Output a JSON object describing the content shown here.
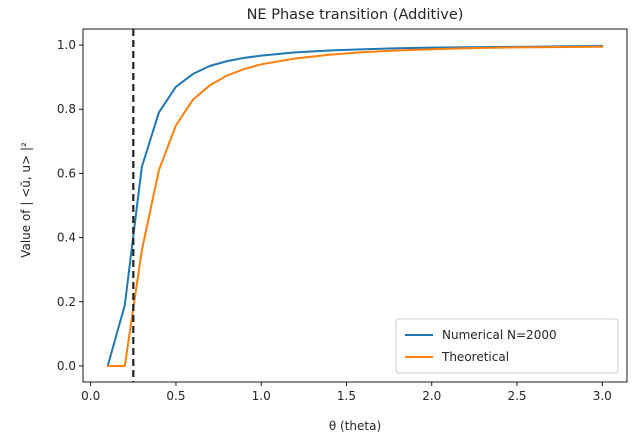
{
  "chart_data": {
    "type": "line",
    "title": "NE Phase transition (Additive)",
    "xlabel": "θ (theta)",
    "ylabel": "Value of | <ũ, u> |²",
    "xlim": [
      -0.045,
      3.145
    ],
    "ylim": [
      -0.05,
      1.05
    ],
    "xticks": [
      0.0,
      0.5,
      1.0,
      1.5,
      2.0,
      2.5,
      3.0
    ],
    "xtick_labels": [
      "0.0",
      "0.5",
      "1.0",
      "1.5",
      "2.0",
      "2.5",
      "3.0"
    ],
    "yticks": [
      0.0,
      0.2,
      0.4,
      0.6,
      0.8,
      1.0
    ],
    "ytick_labels": [
      "0.0",
      "0.2",
      "0.4",
      "0.6",
      "0.8",
      "1.0"
    ],
    "grid": false,
    "legend_position": "lower-right",
    "vline": {
      "x": 0.25,
      "style": "dashed",
      "color": "#222222"
    },
    "series": [
      {
        "name": "Numerical N=2000",
        "color": "#1f77b4",
        "x": [
          0.1,
          0.2,
          0.3,
          0.4,
          0.5,
          0.6,
          0.7,
          0.8,
          0.9,
          1.0,
          1.2,
          1.4,
          1.6,
          1.8,
          2.0,
          2.2,
          2.4,
          2.6,
          2.8,
          3.0
        ],
        "y": [
          0.0,
          0.19,
          0.62,
          0.79,
          0.87,
          0.91,
          0.935,
          0.95,
          0.96,
          0.967,
          0.977,
          0.983,
          0.987,
          0.99,
          0.992,
          0.993,
          0.994,
          0.995,
          0.996,
          0.997
        ]
      },
      {
        "name": "Theoretical",
        "color": "#ff7f0e",
        "x": [
          0.1,
          0.2,
          0.25,
          0.3,
          0.4,
          0.5,
          0.6,
          0.7,
          0.8,
          0.9,
          1.0,
          1.2,
          1.4,
          1.6,
          1.8,
          2.0,
          2.2,
          2.4,
          2.6,
          2.8,
          3.0
        ],
        "y": [
          0.0,
          0.0,
          0.18,
          0.36,
          0.61,
          0.75,
          0.83,
          0.875,
          0.905,
          0.925,
          0.94,
          0.958,
          0.97,
          0.978,
          0.983,
          0.987,
          0.99,
          0.992,
          0.993,
          0.994,
          0.995
        ]
      }
    ]
  }
}
